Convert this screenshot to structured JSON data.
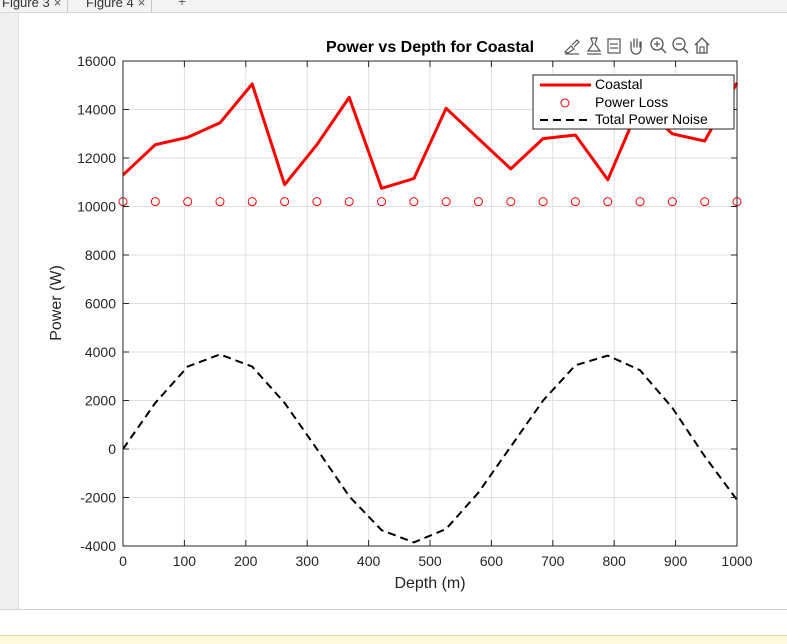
{
  "window": {
    "tabs": [
      {
        "label": "Figure 3",
        "close": "×"
      },
      {
        "label": "Figure 4",
        "close": "×"
      }
    ],
    "add_tab": "+"
  },
  "toolbar": {
    "icons": [
      "brush-icon",
      "datatip-icon",
      "restore-icon",
      "pan-icon",
      "zoom-in-icon",
      "zoom-out-icon",
      "home-icon"
    ]
  },
  "colors": {
    "coastal": "#ff0000",
    "power_loss": "#ff0000",
    "total_power_noise": "#000000"
  },
  "chart_data": {
    "type": "line",
    "title": "Power vs Depth for Coastal",
    "xlabel": "Depth (m)",
    "ylabel": "Power (W)",
    "xlim": [
      0,
      1000
    ],
    "ylim": [
      -4000,
      16000
    ],
    "xticks": [
      0,
      100,
      200,
      300,
      400,
      500,
      600,
      700,
      800,
      900,
      1000
    ],
    "yticks": [
      -4000,
      -2000,
      0,
      2000,
      4000,
      6000,
      8000,
      10000,
      12000,
      14000,
      16000
    ],
    "grid": true,
    "legend_position": "top-right",
    "x": [
      0,
      52.6,
      105.3,
      157.9,
      210.5,
      263.2,
      315.8,
      368.4,
      421.1,
      473.7,
      526.3,
      578.9,
      631.6,
      684.2,
      736.8,
      789.5,
      842.1,
      894.7,
      947.4,
      1000
    ],
    "series": [
      {
        "name": "Coastal",
        "style": "solid-line",
        "values": [
          11300,
          12550,
          12850,
          13450,
          15050,
          10900,
          12550,
          14500,
          10750,
          11150,
          14050,
          12800,
          11550,
          12800,
          12950,
          11100,
          14200,
          13000,
          12700,
          15100
        ]
      },
      {
        "name": "Power Loss",
        "style": "circle-markers",
        "values": [
          10200,
          10200,
          10200,
          10200,
          10200,
          10200,
          10200,
          10200,
          10200,
          10200,
          10200,
          10200,
          10200,
          10200,
          10200,
          10200,
          10200,
          10200,
          10200,
          10200
        ]
      },
      {
        "name": "Total Power Noise",
        "style": "dashed-line",
        "values": [
          0,
          1900,
          3400,
          3900,
          3400,
          1900,
          0,
          -1950,
          -3350,
          -3850,
          -3300,
          -1800,
          100,
          2000,
          3450,
          3850,
          3250,
          1700,
          -300,
          -2100
        ]
      }
    ]
  }
}
